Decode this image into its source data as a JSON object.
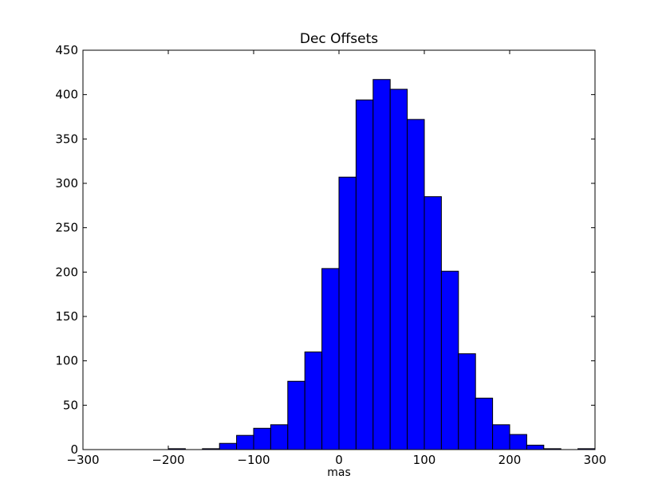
{
  "chart_data": {
    "type": "bar",
    "title": "Dec Offsets",
    "xlabel": "mas",
    "ylabel": "",
    "xlim": [
      -300,
      300
    ],
    "ylim": [
      0,
      450
    ],
    "xticks": [
      -300,
      -200,
      -100,
      0,
      100,
      200,
      300
    ],
    "yticks": [
      0,
      50,
      100,
      150,
      200,
      250,
      300,
      350,
      400,
      450
    ],
    "xtick_labels": [
      "−300",
      "−200",
      "−100",
      "0",
      "100",
      "200",
      "300"
    ],
    "ytick_labels": [
      "0",
      "50",
      "100",
      "150",
      "200",
      "250",
      "300",
      "350",
      "400",
      "450"
    ],
    "grid": false,
    "bar_color": "#0000ff",
    "bins": [
      {
        "x0": -200,
        "x1": -180,
        "count": 1
      },
      {
        "x0": -160,
        "x1": -140,
        "count": 1
      },
      {
        "x0": -140,
        "x1": -120,
        "count": 7
      },
      {
        "x0": -120,
        "x1": -100,
        "count": 16
      },
      {
        "x0": -100,
        "x1": -80,
        "count": 24
      },
      {
        "x0": -80,
        "x1": -60,
        "count": 28
      },
      {
        "x0": -60,
        "x1": -40,
        "count": 77
      },
      {
        "x0": -40,
        "x1": -20,
        "count": 110
      },
      {
        "x0": -20,
        "x1": 0,
        "count": 204
      },
      {
        "x0": 0,
        "x1": 20,
        "count": 307
      },
      {
        "x0": 20,
        "x1": 40,
        "count": 394
      },
      {
        "x0": 40,
        "x1": 60,
        "count": 417
      },
      {
        "x0": 60,
        "x1": 80,
        "count": 406
      },
      {
        "x0": 80,
        "x1": 100,
        "count": 372
      },
      {
        "x0": 100,
        "x1": 120,
        "count": 285
      },
      {
        "x0": 120,
        "x1": 140,
        "count": 201
      },
      {
        "x0": 140,
        "x1": 160,
        "count": 108
      },
      {
        "x0": 160,
        "x1": 180,
        "count": 58
      },
      {
        "x0": 180,
        "x1": 200,
        "count": 28
      },
      {
        "x0": 200,
        "x1": 220,
        "count": 17
      },
      {
        "x0": 220,
        "x1": 240,
        "count": 5
      },
      {
        "x0": 240,
        "x1": 260,
        "count": 1
      },
      {
        "x0": 280,
        "x1": 300,
        "count": 1
      }
    ]
  }
}
